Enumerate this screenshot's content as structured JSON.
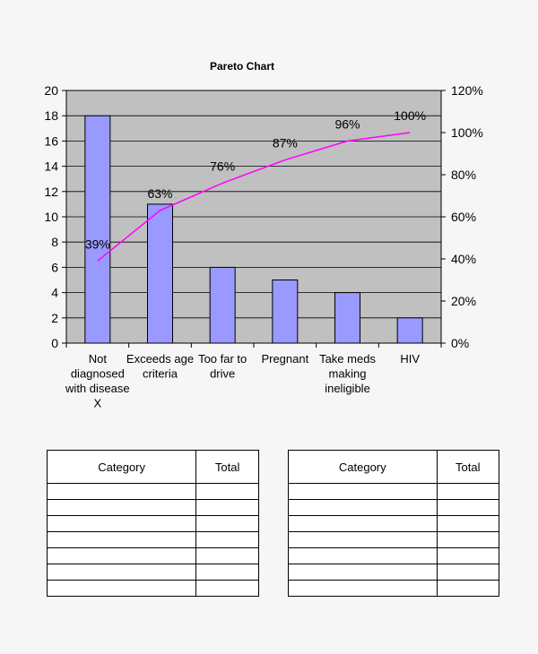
{
  "chart_data": {
    "type": "bar",
    "title": "Pareto Chart",
    "categories": [
      [
        "Not",
        "diagnosed",
        "with disease",
        "X"
      ],
      [
        "Exceeds age",
        "criteria"
      ],
      [
        "Too far to",
        "drive"
      ],
      [
        "Pregnant"
      ],
      [
        "Take meds",
        "making",
        "ineligible"
      ],
      [
        "HIV"
      ]
    ],
    "values": [
      18,
      11,
      6,
      5,
      4,
      2
    ],
    "cumulative_percent": [
      39,
      63,
      76,
      87,
      96,
      100
    ],
    "cumulative_labels": [
      "39%",
      "63%",
      "76%",
      "87%",
      "96%",
      "100%"
    ],
    "ylim": [
      0,
      20
    ],
    "y_ticks": [
      "0",
      "2",
      "4",
      "6",
      "8",
      "10",
      "12",
      "14",
      "16",
      "18",
      "20"
    ],
    "y2lim": [
      0,
      120
    ],
    "y2_ticks": [
      "0%",
      "20%",
      "40%",
      "60%",
      "80%",
      "100%",
      "120%"
    ],
    "grid": true,
    "colors": {
      "plot_bg": "#c0c0c0",
      "bar_fill": "#9999ff",
      "line": "#ff00ff"
    }
  },
  "tables": [
    {
      "headers": [
        "Category",
        "Total"
      ],
      "rows": [
        [
          "",
          ""
        ],
        [
          "",
          ""
        ],
        [
          "",
          ""
        ],
        [
          "",
          ""
        ],
        [
          "",
          ""
        ],
        [
          "",
          ""
        ],
        [
          "",
          ""
        ]
      ]
    },
    {
      "headers": [
        "Category",
        "Total"
      ],
      "rows": [
        [
          "",
          ""
        ],
        [
          "",
          ""
        ],
        [
          "",
          ""
        ],
        [
          "",
          ""
        ],
        [
          "",
          ""
        ],
        [
          "",
          ""
        ],
        [
          "",
          ""
        ]
      ]
    }
  ]
}
